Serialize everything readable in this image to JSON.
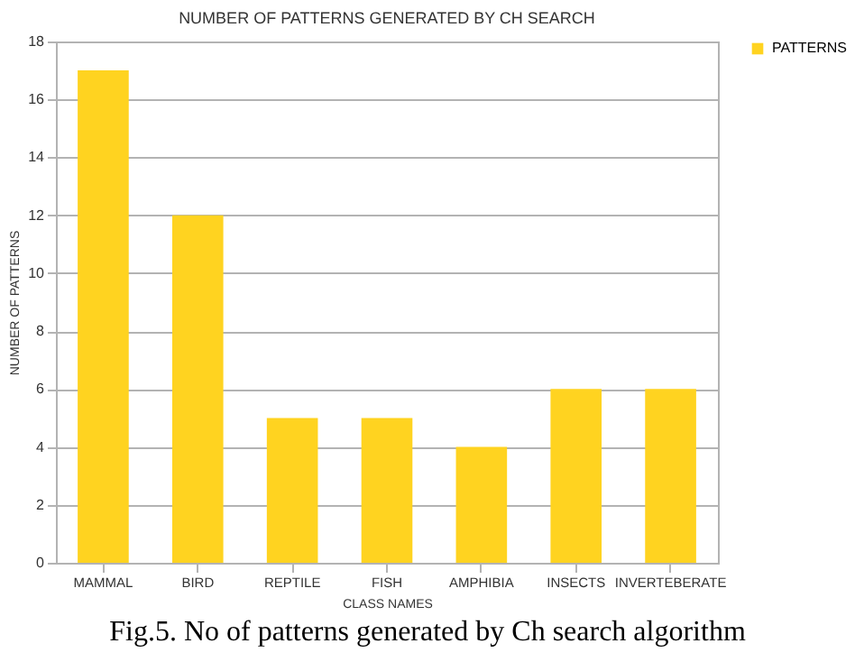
{
  "chart_data": {
    "type": "bar",
    "title": "NUMBER OF PATTERNS GENERATED BY CH SEARCH",
    "xlabel": "CLASS NAMES",
    "ylabel": "NUMBER OF PATTERNS",
    "categories": [
      "MAMMAL",
      "BIRD",
      "REPTILE",
      "FISH",
      "AMPHIBIA",
      "INSECTS",
      "INVERTEBERATE"
    ],
    "series": [
      {
        "name": "PATTERNS",
        "color": "#ffd320",
        "values": [
          17,
          12,
          5,
          5,
          4,
          6,
          6
        ]
      }
    ],
    "ylim": [
      0,
      18
    ],
    "yticks": [
      0,
      2,
      4,
      6,
      8,
      10,
      12,
      14,
      16,
      18
    ],
    "grid": "y",
    "legend": "right",
    "annotations": [
      "Fig.5. No of patterns generated by Ch search algorithm"
    ]
  }
}
